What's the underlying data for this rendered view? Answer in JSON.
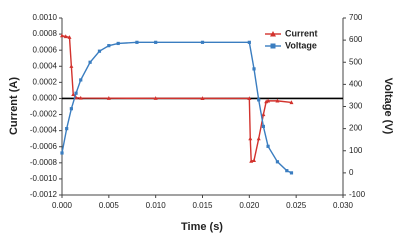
{
  "chart_data": {
    "type": "line",
    "x_label": "Time (s)",
    "y_label": "Current (A)",
    "y2_label": "Voltage (V)",
    "xlim": [
      0,
      0.03
    ],
    "xticks": [
      {
        "value": 0,
        "label": "0.000"
      },
      {
        "value": 0.005,
        "label": "0.005"
      },
      {
        "value": 0.01,
        "label": "0.010"
      },
      {
        "value": 0.015,
        "label": "0.015"
      },
      {
        "value": 0.02,
        "label": "0.020"
      },
      {
        "value": 0.025,
        "label": "0.025"
      },
      {
        "value": 0.03,
        "label": "0.030"
      }
    ],
    "ylim": [
      -0.0012,
      0.001
    ],
    "yticks": [
      {
        "value": 0.001,
        "label": "0.0010"
      },
      {
        "value": 0.0008,
        "label": "0.0008"
      },
      {
        "value": 0.0006,
        "label": "0.0006"
      },
      {
        "value": 0.0004,
        "label": "0.0004"
      },
      {
        "value": 0.0002,
        "label": "0.0002"
      },
      {
        "value": 0,
        "label": "0.0000"
      },
      {
        "value": -0.0002,
        "label": "-0.0002"
      },
      {
        "value": -0.0004,
        "label": "-0.0004"
      },
      {
        "value": -0.0006,
        "label": "-0.0006"
      },
      {
        "value": -0.0008,
        "label": "-0.0008"
      },
      {
        "value": -0.001,
        "label": "-0.0010"
      },
      {
        "value": -0.0012,
        "label": "-0.0012"
      }
    ],
    "y2lim": [
      -100,
      700
    ],
    "y2ticks": [
      700,
      600,
      500,
      400,
      300,
      200,
      100,
      0,
      -100
    ],
    "legend": "upper right",
    "series": [
      {
        "name": "Current",
        "color": "#d2322d",
        "marker": "triangle",
        "x": [
          0,
          0.0004,
          0.0008,
          0.001,
          0.0012,
          0.0015,
          0.002,
          0.005,
          0.01,
          0.015,
          0.02,
          0.0201,
          0.0202,
          0.0205,
          0.021,
          0.0215,
          0.0218,
          0.022,
          0.023,
          0.0245
        ],
        "values": [
          0.00078,
          0.00077,
          0.00076,
          0.0004,
          5e-05,
          1e-05,
          5e-06,
          3e-06,
          2e-06,
          1e-06,
          0,
          -0.0005,
          -0.00078,
          -0.00077,
          -0.0005,
          -0.0002,
          -4e-05,
          -3e-05,
          -3e-05,
          -5e-05
        ]
      },
      {
        "name": "Voltage",
        "color": "#3a7dc0",
        "marker": "square",
        "axis": "y2",
        "x": [
          0,
          0.0005,
          0.001,
          0.0015,
          0.002,
          0.003,
          0.004,
          0.005,
          0.006,
          0.008,
          0.01,
          0.015,
          0.02,
          0.0205,
          0.021,
          0.0215,
          0.022,
          0.023,
          0.024,
          0.0245
        ],
        "values": [
          90,
          200,
          290,
          360,
          420,
          500,
          550,
          575,
          585,
          590,
          590,
          590,
          590,
          470,
          330,
          210,
          120,
          50,
          10,
          0
        ]
      }
    ]
  }
}
